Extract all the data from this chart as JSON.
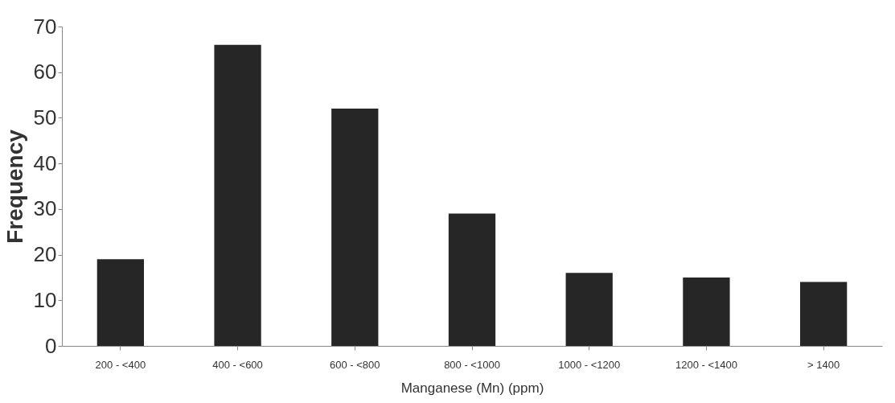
{
  "chart_data": {
    "type": "bar",
    "xlabel": "Manganese (Mn) (ppm)",
    "ylabel": "Frequency",
    "categories": [
      "200 - <400",
      "400 - <600",
      "600 - <800",
      "800 - <1000",
      "1000 - <1200",
      "1200 - <1400",
      "> 1400"
    ],
    "values": [
      19,
      66,
      52,
      29,
      16,
      15,
      14
    ],
    "color": "#262626",
    "ylim": [
      0,
      70
    ],
    "yticks": [
      0,
      10,
      20,
      30,
      40,
      50,
      60,
      70
    ],
    "grid": false
  }
}
